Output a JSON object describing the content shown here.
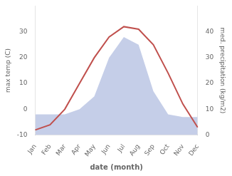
{
  "chart_data": {
    "type": "line",
    "categories": [
      "Jan",
      "Feb",
      "Mar",
      "Apr",
      "May",
      "Jun",
      "Jul",
      "Aug",
      "Sep",
      "Oct",
      "Nov",
      "Dec"
    ],
    "series": [
      {
        "type": "area",
        "color": "#c5cee8",
        "axis": "y2",
        "values": [
          8,
          8,
          8,
          10,
          15,
          30,
          38,
          35,
          17,
          8,
          7,
          7
        ]
      },
      {
        "type": "line",
        "color": "#c0504d",
        "values": [
          -8,
          -6,
          0,
          10,
          20,
          28,
          32,
          31,
          25,
          14,
          2,
          -7
        ]
      }
    ],
    "xlabel": "date (month)",
    "ylabel": "max temp (C)",
    "y2label": "med. precipitation (kg/m2)",
    "ylim": [
      -10,
      40
    ],
    "yticks": [
      -10,
      0,
      10,
      20,
      30
    ],
    "y2lim": [
      0,
      50
    ],
    "y2ticks": [
      0,
      10,
      20,
      30,
      40
    ],
    "grid": false
  }
}
